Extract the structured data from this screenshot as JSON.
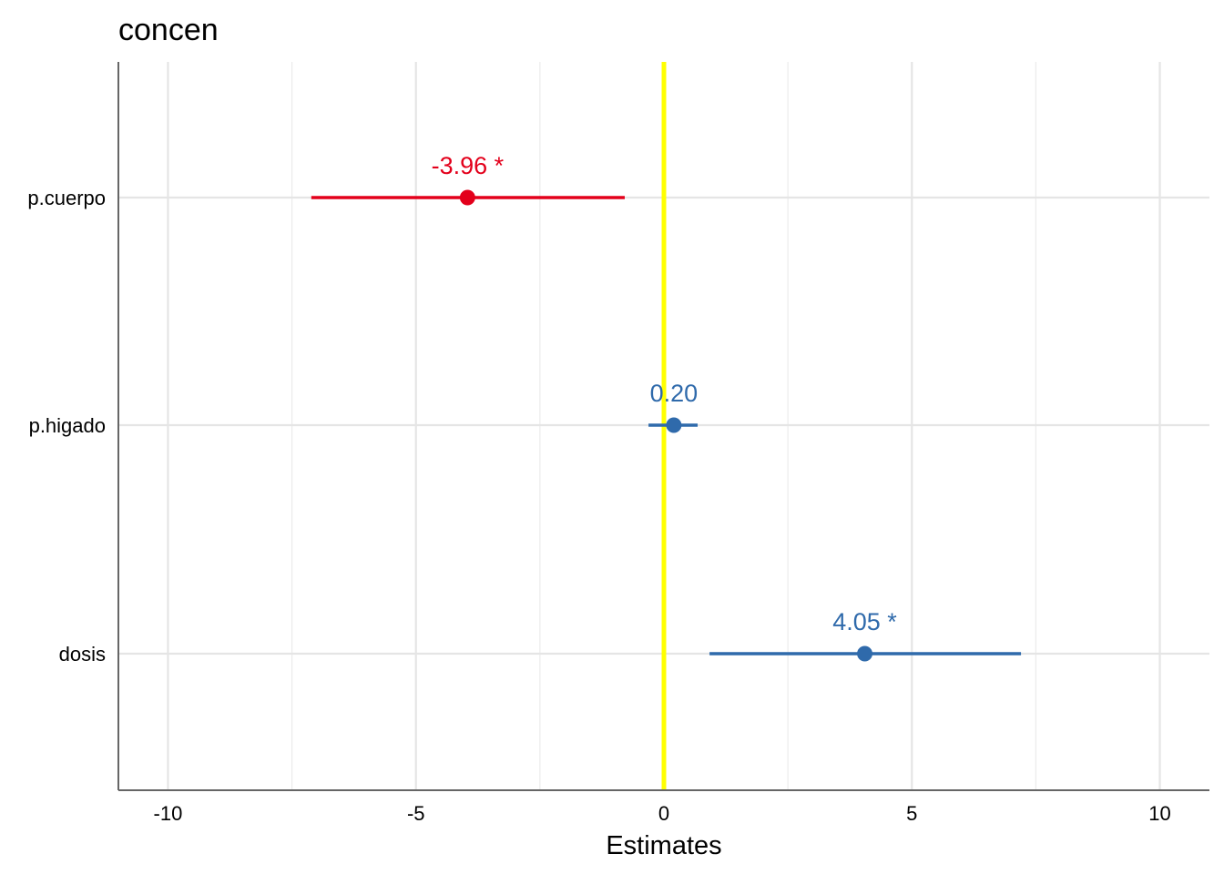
{
  "chart_data": {
    "type": "forest",
    "title": "concen",
    "xlabel": "Estimates",
    "ylabel": "",
    "xlim": [
      -11,
      11
    ],
    "x_ticks": [
      -10,
      -5,
      0,
      5,
      10
    ],
    "x_tick_labels": [
      "-10",
      "-5",
      "0",
      "5",
      "10"
    ],
    "grid": true,
    "reference_line": {
      "x": 0,
      "color": "#FFFF00"
    },
    "terms": [
      {
        "name": "p.cuerpo",
        "estimate": -3.96,
        "ci_low": -7.11,
        "ci_high": -0.79,
        "label": "-3.96 *",
        "color": "#E3001B"
      },
      {
        "name": "p.higado",
        "estimate": 0.2,
        "ci_low": -0.31,
        "ci_high": 0.68,
        "label": "0.20",
        "color": "#2F6AAB"
      },
      {
        "name": "dosis",
        "estimate": 4.05,
        "ci_low": 0.92,
        "ci_high": 7.2,
        "label": "4.05 *",
        "color": "#2F6AAB"
      }
    ]
  }
}
